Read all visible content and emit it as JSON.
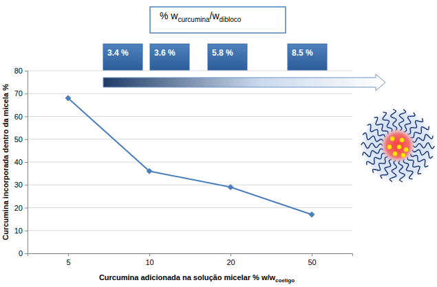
{
  "chart_data": {
    "type": "line",
    "categories": [
      5,
      10,
      20,
      50
    ],
    "values": [
      68,
      36,
      29,
      17
    ],
    "color": "#4a7ebb",
    "marker": "diamond",
    "ylim": [
      0,
      80
    ],
    "yticks": [
      0,
      10,
      20,
      30,
      40,
      50,
      60,
      70,
      80
    ],
    "grid": true,
    "y_label": "Curcumina incorporada dentro da micela %",
    "x_label": [
      "Curcumina adicionada na solução micelar % w/w",
      "coeligo"
    ],
    "annotations": {
      "box_title": [
        "% w",
        "curcumina",
        "/w",
        "dibloco"
      ],
      "boxes": [
        "3.4 %",
        "3.6 %",
        "5.8 %",
        "8.5 %"
      ]
    }
  }
}
